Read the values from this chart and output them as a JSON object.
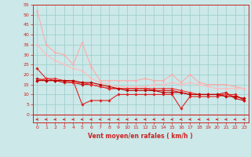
{
  "xlabel": "Vent moyen/en rafales ( km/h )",
  "background_color": "#cce8e8",
  "grid_color": "#99cccc",
  "x_max": 23,
  "y_min": 0,
  "y_max": 55,
  "y_ticks": [
    0,
    5,
    10,
    15,
    20,
    25,
    30,
    35,
    40,
    45,
    50,
    55
  ],
  "x_ticks": [
    0,
    1,
    2,
    3,
    4,
    5,
    6,
    7,
    8,
    9,
    10,
    11,
    12,
    13,
    14,
    15,
    16,
    17,
    18,
    19,
    20,
    21,
    22,
    23
  ],
  "lines": [
    {
      "x": [
        0,
        1,
        2,
        3,
        4,
        5,
        6,
        7,
        8,
        9,
        10,
        11,
        12,
        13,
        14,
        15,
        16,
        17,
        18,
        19,
        20,
        21,
        22,
        23
      ],
      "y": [
        52,
        35,
        31,
        30,
        25,
        36,
        24,
        17,
        17,
        17,
        17,
        17,
        18,
        17,
        17,
        20,
        16,
        20,
        16,
        15,
        15,
        15,
        14,
        13
      ],
      "color": "#ffaaaa",
      "lw": 0.8,
      "marker": "D",
      "ms": 1.5
    },
    {
      "x": [
        0,
        1,
        2,
        3,
        4,
        5,
        6,
        7,
        8,
        9,
        10,
        11,
        12,
        13,
        14,
        15,
        16,
        17,
        18,
        19,
        20,
        21,
        22,
        23
      ],
      "y": [
        35,
        30,
        27,
        25,
        23,
        22,
        18,
        16,
        15,
        14,
        14,
        14,
        14,
        15,
        15,
        16,
        15,
        16,
        15,
        14,
        13,
        13,
        13,
        13
      ],
      "color": "#ffbbbb",
      "lw": 0.8,
      "marker": "D",
      "ms": 1.5
    },
    {
      "x": [
        0,
        1,
        2,
        3,
        4,
        5,
        6,
        7,
        8,
        9,
        10,
        11,
        12,
        13,
        14,
        15,
        16,
        17,
        18,
        19,
        20,
        21,
        22,
        23
      ],
      "y": [
        23,
        18,
        17,
        17,
        17,
        5,
        7,
        7,
        7,
        10,
        10,
        10,
        10,
        10,
        10,
        10,
        3,
        9,
        9,
        9,
        9,
        10,
        10,
        7
      ],
      "color": "#dd2222",
      "lw": 0.8,
      "marker": "D",
      "ms": 1.8
    },
    {
      "x": [
        0,
        1,
        2,
        3,
        4,
        5,
        6,
        7,
        8,
        9,
        10,
        11,
        12,
        13,
        14,
        15,
        16,
        17,
        18,
        19,
        20,
        21,
        22,
        23
      ],
      "y": [
        18,
        17,
        17,
        16,
        16,
        15,
        15,
        14,
        13,
        13,
        13,
        13,
        13,
        12,
        12,
        12,
        11,
        10,
        10,
        10,
        10,
        11,
        8,
        7
      ],
      "color": "#cc1111",
      "lw": 0.8,
      "marker": "D",
      "ms": 1.8
    },
    {
      "x": [
        0,
        1,
        2,
        3,
        4,
        5,
        6,
        7,
        8,
        9,
        10,
        11,
        12,
        13,
        14,
        15,
        16,
        17,
        18,
        19,
        20,
        21,
        22,
        23
      ],
      "y": [
        17,
        18,
        18,
        17,
        16,
        16,
        15,
        14,
        13,
        13,
        13,
        13,
        13,
        13,
        13,
        13,
        12,
        11,
        10,
        10,
        10,
        10,
        9,
        8
      ],
      "color": "#ee3333",
      "lw": 0.8,
      "marker": "D",
      "ms": 1.8
    },
    {
      "x": [
        0,
        1,
        2,
        3,
        4,
        5,
        6,
        7,
        8,
        9,
        10,
        11,
        12,
        13,
        14,
        15,
        16,
        17,
        18,
        19,
        20,
        21,
        22,
        23
      ],
      "y": [
        17,
        17,
        17,
        17,
        17,
        16,
        16,
        15,
        14,
        13,
        12,
        12,
        12,
        12,
        11,
        11,
        11,
        10,
        10,
        10,
        10,
        9,
        9,
        8
      ],
      "color": "#bb0000",
      "lw": 0.8,
      "marker": "D",
      "ms": 1.8
    }
  ],
  "arrow_color": "#cc2222",
  "tick_color": "#cc2222",
  "tick_fontsize": 4.5,
  "xlabel_fontsize": 5.5
}
